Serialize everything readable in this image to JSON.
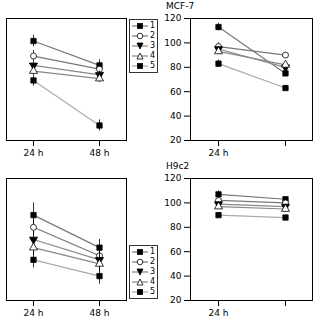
{
  "chart_data": [
    {
      "type": "line",
      "categories": [
        "24 h",
        "48 h"
      ],
      "series": [
        {
          "name": "1",
          "color": "#777777",
          "marker": "filled-square",
          "values": [
            93,
            80
          ],
          "yerr": [
            3,
            3
          ]
        },
        {
          "name": "2",
          "color": "#777777",
          "marker": "open-circle",
          "values": [
            85,
            78
          ],
          "yerr": [
            3,
            2
          ]
        },
        {
          "name": "3",
          "color": "#888888",
          "marker": "filled-triangle-down",
          "values": [
            80,
            75
          ],
          "yerr": [
            2,
            2
          ]
        },
        {
          "name": "4",
          "color": "#888888",
          "marker": "open-triangle-up",
          "values": [
            77,
            73
          ],
          "yerr": [
            2,
            2
          ]
        },
        {
          "name": "5",
          "color": "#aaaaaa",
          "marker": "filled-square",
          "values": [
            72,
            48
          ],
          "yerr": [
            3,
            3
          ]
        }
      ],
      "ylim": [
        40,
        105
      ],
      "tick_labels": "x",
      "legend": "upper-right"
    },
    {
      "type": "line",
      "title": "MCF-7",
      "categories": [
        "24 h",
        null
      ],
      "series": [
        {
          "name": "1",
          "color": "#777777",
          "marker": "filled-square",
          "values": [
            113,
            75
          ],
          "yerr": [
            3,
            2
          ]
        },
        {
          "name": "2",
          "color": "#777777",
          "marker": "open-circle",
          "values": [
            97,
            90
          ],
          "yerr": [
            3,
            2
          ]
        },
        {
          "name": "3",
          "color": "#888888",
          "marker": "filled-triangle-down",
          "values": [
            95,
            80
          ],
          "yerr": [
            2,
            2
          ]
        },
        {
          "name": "4",
          "color": "#888888",
          "marker": "open-triangle-up",
          "values": [
            93,
            82
          ],
          "yerr": [
            2,
            2
          ]
        },
        {
          "name": "5",
          "color": "#aaaaaa",
          "marker": "filled-square",
          "values": [
            83,
            63
          ],
          "yerr": [
            3,
            2
          ]
        }
      ],
      "ylim": [
        20,
        120
      ],
      "yticks": [
        20,
        40,
        60,
        80,
        100,
        120
      ]
    },
    {
      "type": "line",
      "categories": [
        "24 h",
        "48 h"
      ],
      "series": [
        {
          "name": "1",
          "color": "#777777",
          "marker": "filled-square",
          "values": [
            106,
            98
          ],
          "yerr": [
            3,
            2
          ]
        },
        {
          "name": "2",
          "color": "#777777",
          "marker": "open-circle",
          "values": [
            103,
            96
          ],
          "yerr": [
            2,
            2
          ]
        },
        {
          "name": "3",
          "color": "#888888",
          "marker": "filled-triangle-down",
          "values": [
            100,
            95
          ],
          "yerr": [
            2,
            2
          ]
        },
        {
          "name": "4",
          "color": "#888888",
          "marker": "open-triangle-up",
          "values": [
            98,
            94
          ],
          "yerr": [
            2,
            2
          ]
        },
        {
          "name": "5",
          "color": "#aaaaaa",
          "marker": "filled-square",
          "values": [
            95,
            91
          ],
          "yerr": [
            2,
            2
          ]
        }
      ],
      "ylim": [
        85,
        115
      ],
      "tick_labels": "x",
      "legend": "lower-right"
    },
    {
      "type": "line",
      "title": "H9c2",
      "categories": [
        "24 h",
        null
      ],
      "series": [
        {
          "name": "1",
          "color": "#777777",
          "marker": "filled-square",
          "values": [
            107,
            103
          ],
          "yerr": [
            3,
            2
          ]
        },
        {
          "name": "2",
          "color": "#777777",
          "marker": "open-circle",
          "values": [
            102,
            100
          ],
          "yerr": [
            2,
            2
          ]
        },
        {
          "name": "3",
          "color": "#888888",
          "marker": "filled-triangle-down",
          "values": [
            99,
            97
          ],
          "yerr": [
            2,
            2
          ]
        },
        {
          "name": "4",
          "color": "#888888",
          "marker": "open-triangle-up",
          "values": [
            97,
            95
          ],
          "yerr": [
            2,
            2
          ]
        },
        {
          "name": "5",
          "color": "#aaaaaa",
          "marker": "filled-square",
          "values": [
            90,
            88
          ],
          "yerr": [
            2,
            2
          ]
        }
      ],
      "ylim": [
        20,
        120
      ],
      "yticks": [
        20,
        40,
        60,
        80,
        100,
        120
      ]
    }
  ]
}
